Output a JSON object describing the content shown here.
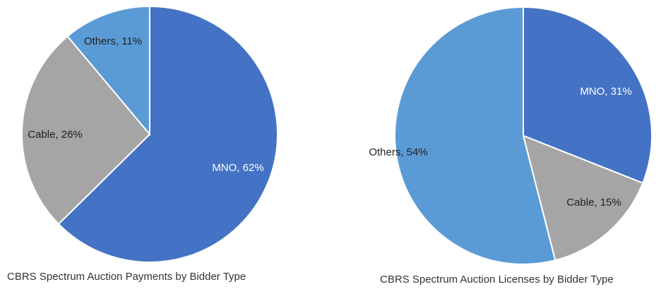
{
  "chart_data": [
    {
      "type": "pie",
      "title": "CBRS Spectrum Auction Payments by Bidder Type",
      "slices": [
        {
          "name": "MNO",
          "value": 62,
          "label": "MNO, 62%",
          "color": "#4472c4",
          "label_color": "#ffffff"
        },
        {
          "name": "Cable",
          "value": 26,
          "label": "Cable, 26%",
          "color": "#a5a5a5",
          "label_color": "#222222"
        },
        {
          "name": "Others",
          "value": 11,
          "label": "Others, 11%",
          "color": "#5b9bd5",
          "label_color": "#222222"
        }
      ]
    },
    {
      "type": "pie",
      "title": "CBRS Spectrum Auction Licenses by Bidder Type",
      "slices": [
        {
          "name": "MNO",
          "value": 31,
          "label": "MNO, 31%",
          "color": "#4472c4",
          "label_color": "#ffffff"
        },
        {
          "name": "Cable",
          "value": 15,
          "label": "Cable, 15%",
          "color": "#a5a5a5",
          "label_color": "#222222"
        },
        {
          "name": "Others",
          "value": 54,
          "label": "Others, 54%",
          "color": "#5b9bd5",
          "label_color": "#222222"
        }
      ]
    }
  ]
}
